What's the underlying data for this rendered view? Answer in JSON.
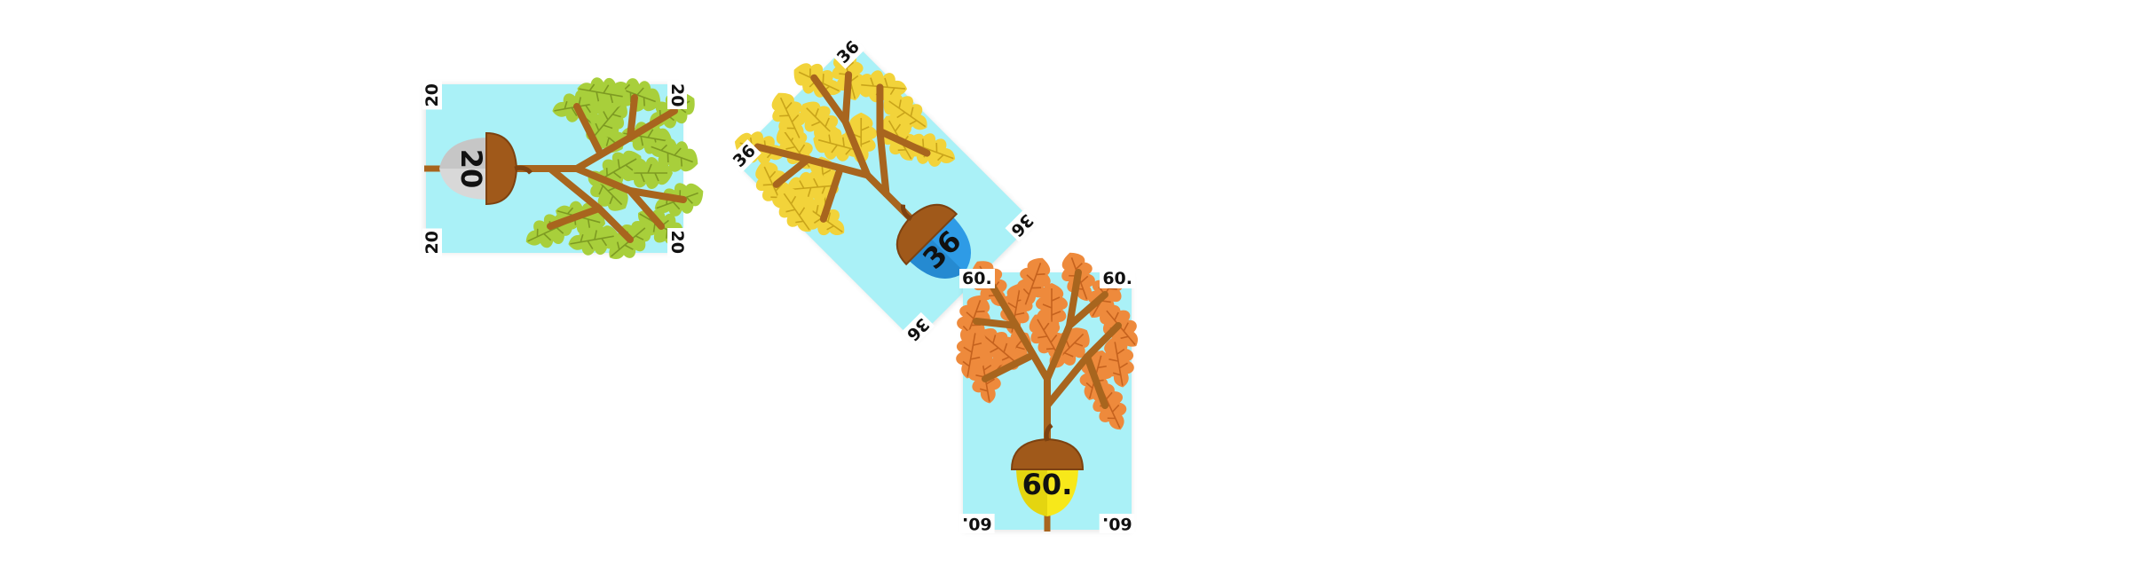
{
  "cards": [
    {
      "number": "20",
      "corner_label": "20",
      "leaf_color": "#a8cf3b",
      "leaf_vein": "#7d9a22",
      "nut_color": "#d8d8d8",
      "nut_shade": "#b8b8b8"
    },
    {
      "number": "36",
      "corner_label": "36",
      "leaf_color": "#f2d33a",
      "leaf_vein": "#c9a41a",
      "nut_color": "#2e9be6",
      "nut_shade": "#1f7cc0"
    },
    {
      "number": "60.",
      "corner_label": "60.",
      "leaf_color": "#ee8a3c",
      "leaf_vein": "#c5621e",
      "nut_color": "#f7e81a",
      "nut_shade": "#d6c50a"
    }
  ],
  "colors": {
    "card_background": "#aaf1f7",
    "branch": "#a8651e",
    "cap": "#a0591a",
    "cap_dark": "#7d4210"
  }
}
